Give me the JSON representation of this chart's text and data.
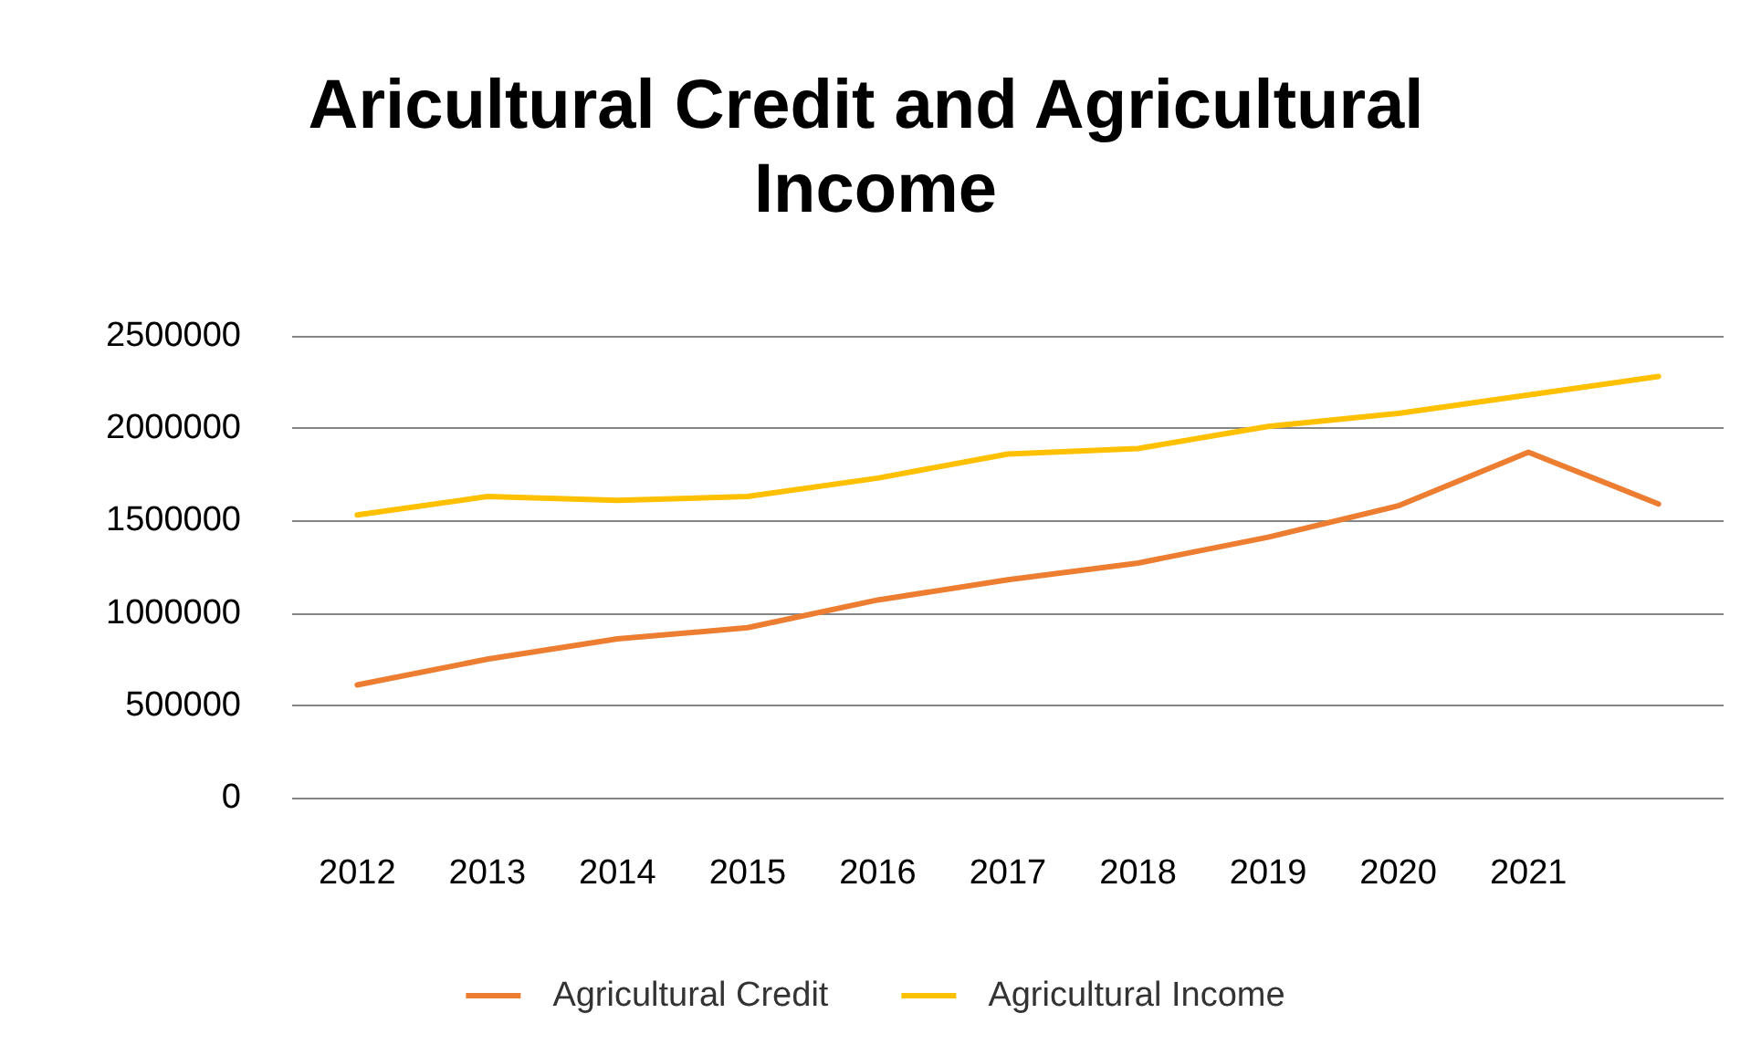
{
  "chart_data": {
    "type": "line",
    "title": "Aricultural Credit and Agricultural Income",
    "categories": [
      "2012",
      "2013",
      "2014",
      "2015",
      "2016",
      "2017",
      "2018",
      "2019",
      "2020",
      "2021",
      null
    ],
    "series": [
      {
        "name": "Agricultural Credit",
        "color": "#ed7d31",
        "values": [
          610000,
          750000,
          860000,
          920000,
          1070000,
          1180000,
          1270000,
          1410000,
          1580000,
          1870000,
          1590000
        ]
      },
      {
        "name": "Agricultural Income",
        "color": "#ffc000",
        "values": [
          1530000,
          1630000,
          1610000,
          1630000,
          1730000,
          1860000,
          1890000,
          2010000,
          2080000,
          2180000,
          2280000
        ]
      }
    ],
    "ylim": [
      0,
      2500000
    ],
    "yticks": [
      0,
      500000,
      1000000,
      1500000,
      2000000,
      2500000
    ],
    "grid": "y",
    "legend": "bottom",
    "marker": "none",
    "line_style": "solid"
  }
}
